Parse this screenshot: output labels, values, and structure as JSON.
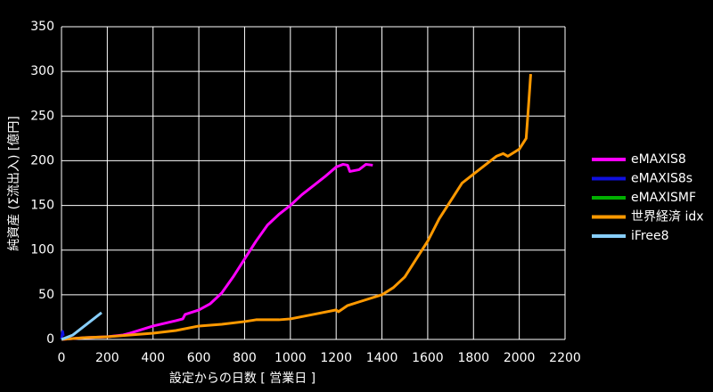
{
  "chart_data": {
    "type": "line",
    "xlabel": "設定からの日数 [ 営業日 ]",
    "ylabel": "純資産 (Σ流出入) [億円]",
    "xlim": [
      0,
      2200
    ],
    "xticks": [
      0,
      200,
      400,
      600,
      800,
      1000,
      1200,
      1400,
      1600,
      1800,
      2000,
      2200
    ],
    "ylim": [
      0,
      350
    ],
    "yticks": [
      0,
      50,
      100,
      150,
      200,
      250,
      300,
      350
    ],
    "grid": true,
    "legend": "right",
    "series": [
      {
        "name": "eMAXIS8",
        "color": "#ff00ff",
        "x": [
          0,
          100,
          200,
          270,
          300,
          400,
          500,
          530,
          540,
          600,
          650,
          700,
          750,
          800,
          850,
          900,
          950,
          1000,
          1050,
          1100,
          1150,
          1200,
          1230,
          1250,
          1260,
          1300,
          1330,
          1360
        ],
        "values": [
          0,
          2,
          3,
          5,
          7,
          15,
          21,
          23,
          28,
          33,
          40,
          52,
          70,
          90,
          110,
          128,
          140,
          150,
          162,
          172,
          182,
          193,
          196,
          195,
          188,
          190,
          196,
          195
        ]
      },
      {
        "name": "eMAXIS8s",
        "color": "#1010e0",
        "x": [
          0,
          5,
          8
        ],
        "values": [
          0,
          9,
          4
        ]
      },
      {
        "name": "eMAXISMF",
        "color": "#00b000",
        "x": [
          0,
          10
        ],
        "values": [
          0,
          1
        ]
      },
      {
        "name": "世界経済 idx",
        "color": "#ff9900",
        "x": [
          0,
          100,
          200,
          300,
          400,
          500,
          600,
          700,
          800,
          850,
          950,
          1000,
          1100,
          1200,
          1210,
          1250,
          1300,
          1400,
          1450,
          1500,
          1550,
          1600,
          1650,
          1700,
          1750,
          1800,
          1850,
          1900,
          1930,
          1950,
          2000,
          2030,
          2040,
          2050
        ],
        "values": [
          0,
          2,
          3,
          5,
          7,
          10,
          15,
          17,
          20,
          22,
          22,
          23,
          28,
          33,
          31,
          38,
          42,
          50,
          58,
          70,
          90,
          110,
          135,
          155,
          175,
          185,
          195,
          205,
          208,
          205,
          213,
          225,
          260,
          297
        ]
      },
      {
        "name": "iFree8",
        "color": "#87cefa",
        "x": [
          0,
          50,
          100,
          150,
          175
        ],
        "values": [
          0,
          5,
          15,
          25,
          30
        ]
      }
    ]
  }
}
